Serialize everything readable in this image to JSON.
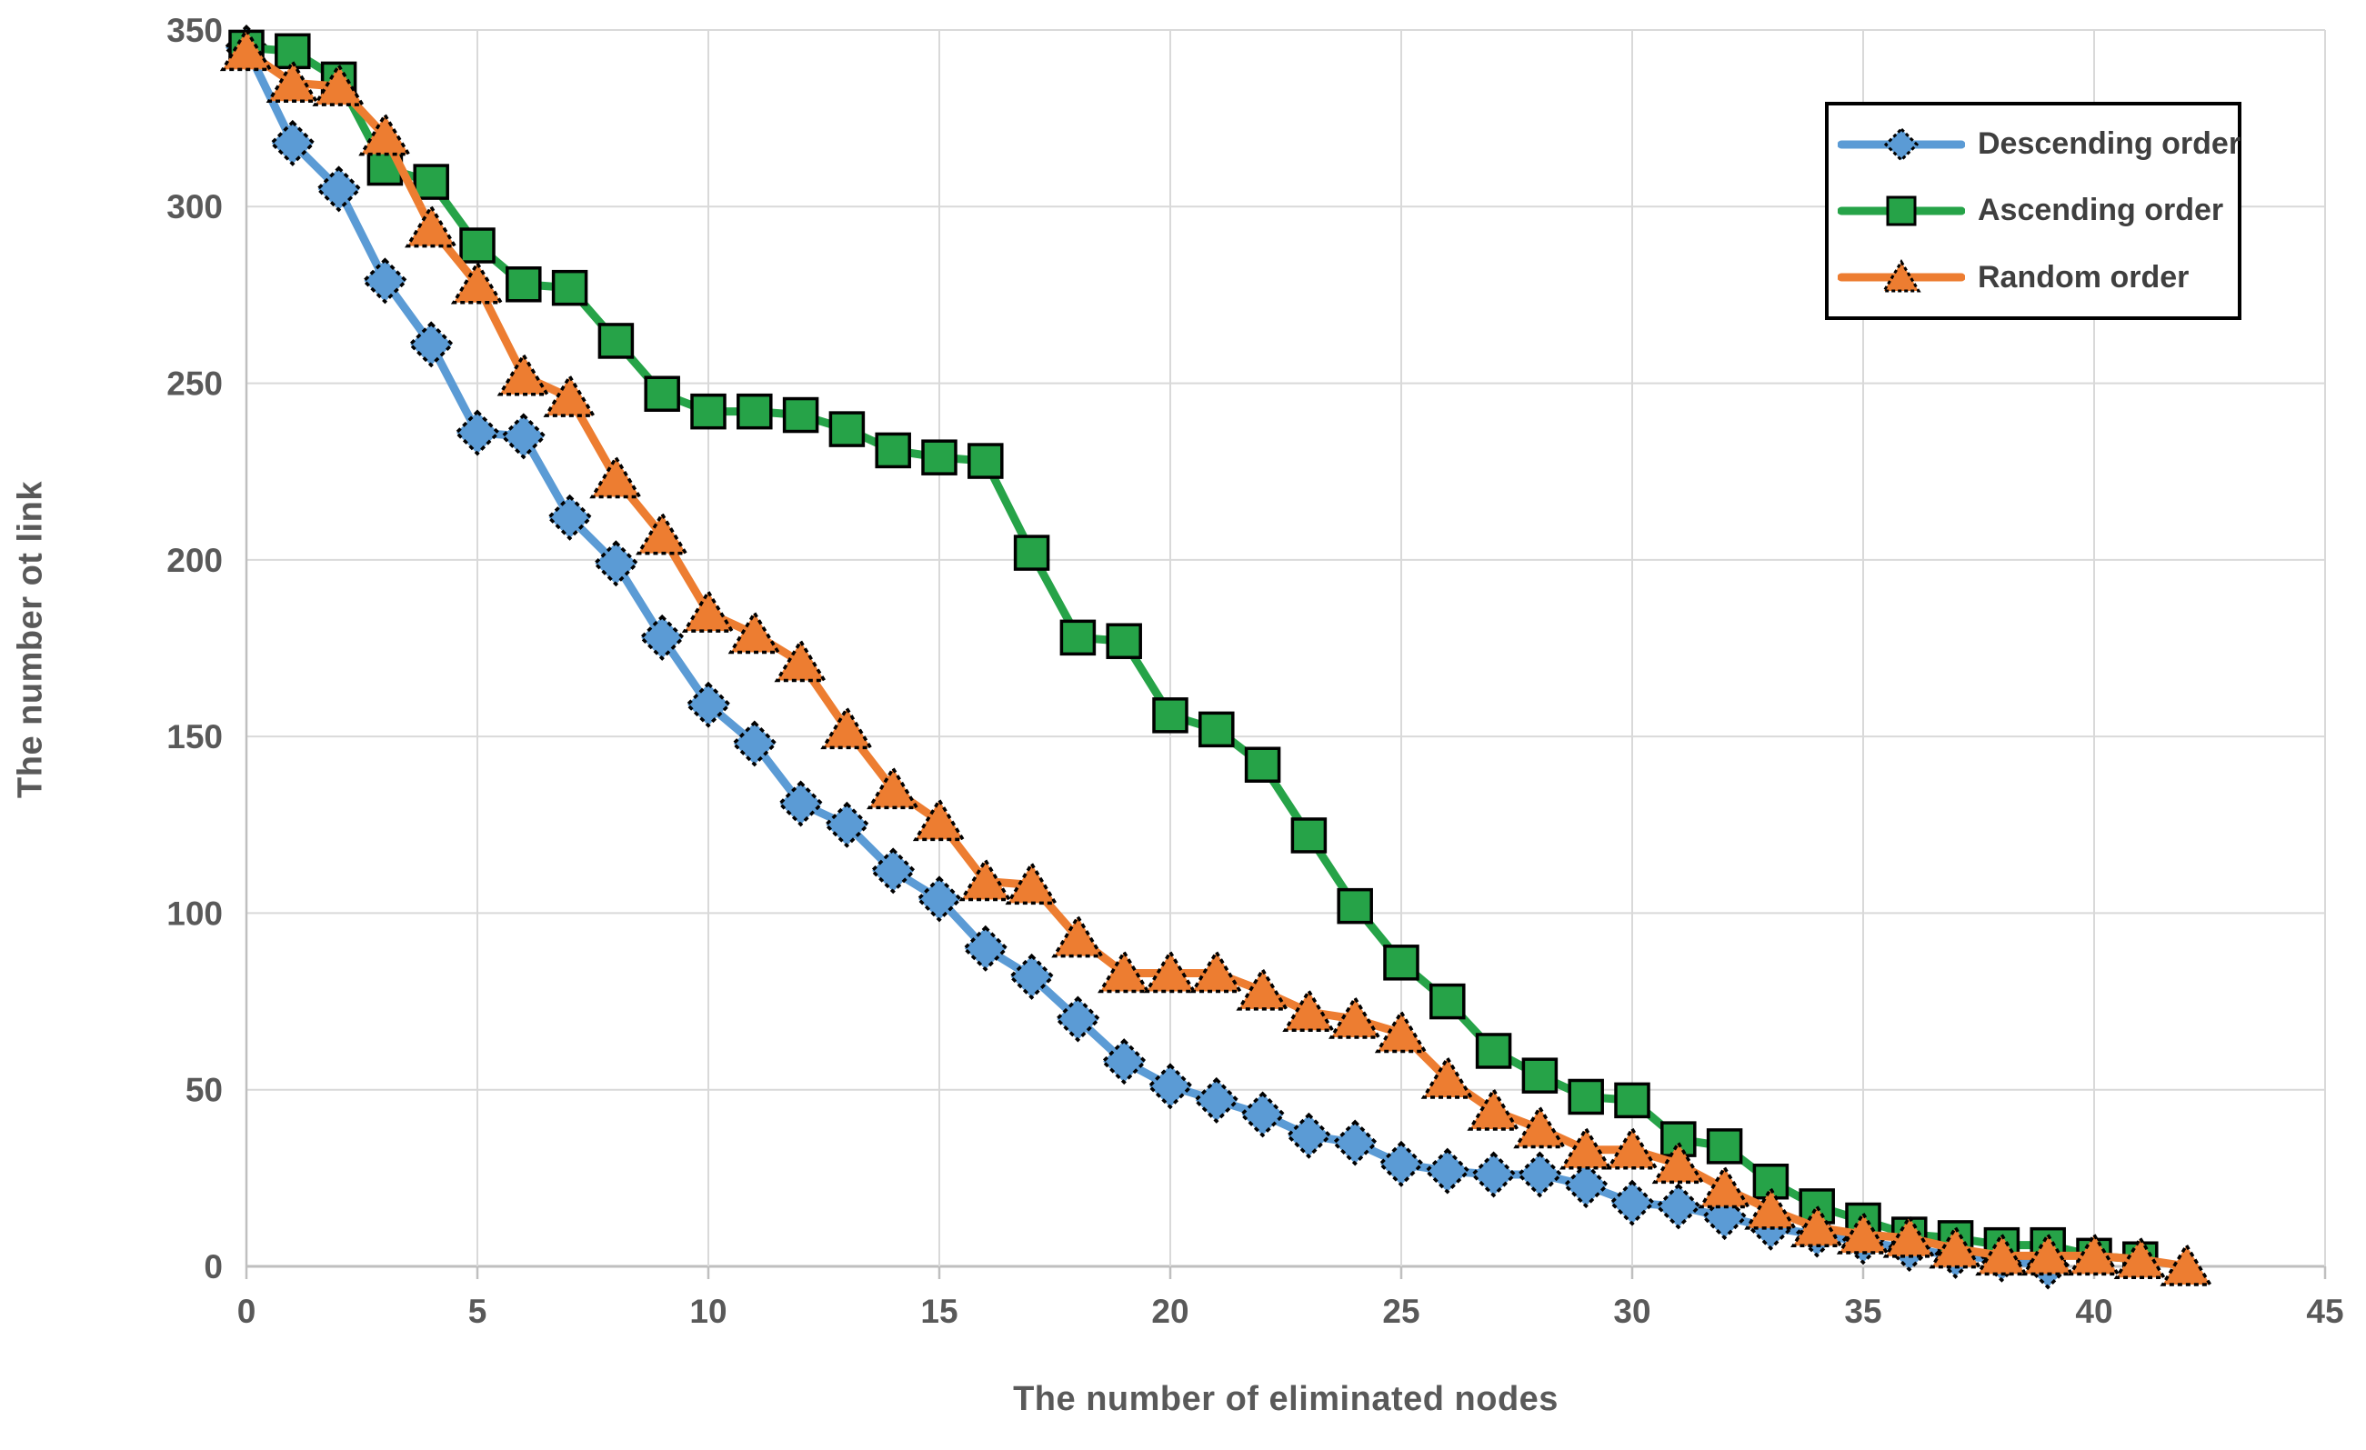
{
  "chart_data": {
    "type": "line",
    "title": "",
    "xlabel": "The number of eliminated nodes",
    "ylabel": "The number ot link",
    "xlim": [
      0,
      45
    ],
    "ylim": [
      0,
      350
    ],
    "x_ticks": [
      0,
      5,
      10,
      15,
      20,
      25,
      30,
      35,
      40,
      45
    ],
    "y_ticks": [
      0,
      50,
      100,
      150,
      200,
      250,
      300,
      350
    ],
    "grid": true,
    "legend_position": "top-right",
    "colors": {
      "descending": "#5B9BD5",
      "ascending": "#26A348",
      "random": "#ED7D31",
      "gridline": "#D9D9D9",
      "axis_line": "#BFBFBF",
      "tick_label": "#595959",
      "axis_title": "#595959",
      "marker_outline": "#000000"
    },
    "series": [
      {
        "name": "Descending order",
        "marker": "diamond",
        "color": "#5B9BD5",
        "x_start": 0,
        "x_step": 1,
        "values": [
          345,
          318,
          305,
          279,
          261,
          236,
          235,
          212,
          199,
          178,
          159,
          148,
          131,
          125,
          112,
          104,
          90,
          82,
          70,
          58,
          51,
          47,
          43,
          37,
          35,
          29,
          27,
          26,
          26,
          23,
          18,
          17,
          14,
          11,
          9,
          7,
          5,
          3,
          2,
          0
        ]
      },
      {
        "name": "Ascending order",
        "marker": "square",
        "color": "#26A348",
        "x_start": 0,
        "x_step": 1,
        "values": [
          345,
          344,
          336,
          311,
          307,
          289,
          278,
          277,
          262,
          247,
          242,
          242,
          241,
          237,
          231,
          229,
          228,
          202,
          178,
          177,
          156,
          152,
          142,
          122,
          102,
          86,
          75,
          61,
          54,
          48,
          47,
          36,
          34,
          24,
          17,
          13,
          9,
          8,
          6,
          6,
          3,
          2
        ]
      },
      {
        "name": "Random order",
        "marker": "triangle",
        "color": "#ED7D31",
        "x_start": 0,
        "x_step": 1,
        "values": [
          344,
          335,
          334,
          320,
          294,
          278,
          252,
          246,
          223,
          207,
          185,
          179,
          171,
          152,
          135,
          126,
          109,
          108,
          93,
          83,
          83,
          83,
          78,
          72,
          70,
          66,
          53,
          44,
          39,
          33,
          33,
          29,
          22,
          16,
          11,
          9,
          8,
          5,
          3,
          3,
          3,
          2,
          0
        ]
      }
    ]
  }
}
